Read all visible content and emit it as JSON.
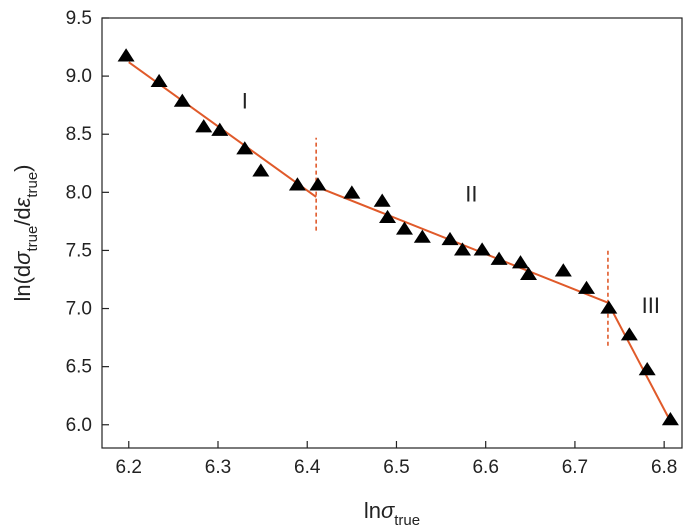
{
  "chart_data": {
    "type": "scatter",
    "xlabel": {
      "main": "ln",
      "greek": "σ",
      "sub": "true"
    },
    "ylabel": {
      "main": "ln(d",
      "greek1": "σ",
      "sub1": "true",
      "mid": "/d",
      "greek2": "ε",
      "sub2": "true",
      "tail": ")"
    },
    "xlim": [
      6.17,
      6.82
    ],
    "ylim": [
      5.8,
      9.5
    ],
    "xticks": [
      6.2,
      6.3,
      6.4,
      6.5,
      6.6,
      6.7,
      6.8
    ],
    "xtick_labels": [
      "6.2",
      "6.3",
      "6.4",
      "6.5",
      "6.6",
      "6.7",
      "6.8"
    ],
    "yticks": [
      6.0,
      6.5,
      7.0,
      7.5,
      8.0,
      8.5,
      9.0,
      9.5
    ],
    "ytick_labels": [
      "6.0",
      "6.5",
      "7.0",
      "7.5",
      "8.0",
      "8.5",
      "9.0",
      "9.5"
    ],
    "grid": false,
    "legend": "none",
    "marker": "filled-triangle",
    "series": [
      {
        "marker_color": "#000000",
        "points": [
          [
            6.197,
            9.17
          ],
          [
            6.234,
            8.95
          ],
          [
            6.26,
            8.78
          ],
          [
            6.284,
            8.56
          ],
          [
            6.302,
            8.53
          ],
          [
            6.33,
            8.37
          ],
          [
            6.348,
            8.18
          ],
          [
            6.389,
            8.06
          ],
          [
            6.412,
            8.06
          ],
          [
            6.45,
            7.99
          ],
          [
            6.484,
            7.92
          ],
          [
            6.49,
            7.78
          ],
          [
            6.509,
            7.68
          ],
          [
            6.529,
            7.61
          ],
          [
            6.56,
            7.59
          ],
          [
            6.574,
            7.5
          ],
          [
            6.596,
            7.5
          ],
          [
            6.615,
            7.42
          ],
          [
            6.639,
            7.39
          ],
          [
            6.648,
            7.29
          ],
          [
            6.687,
            7.32
          ],
          [
            6.713,
            7.17
          ],
          [
            6.738,
            7.0
          ],
          [
            6.761,
            6.77
          ],
          [
            6.781,
            6.47
          ],
          [
            6.807,
            6.04
          ]
        ]
      }
    ],
    "fit_lines": [
      {
        "label": "I",
        "from": [
          6.2,
          9.12
        ],
        "to": [
          6.41,
          7.96
        ],
        "color": "#e05a2a"
      },
      {
        "label": "II",
        "from": [
          6.41,
          8.05
        ],
        "to": [
          6.737,
          7.05
        ],
        "color": "#e05a2a"
      },
      {
        "label": "III",
        "from": [
          6.737,
          7.05
        ],
        "to": [
          6.807,
          6.03
        ],
        "color": "#e05a2a"
      }
    ],
    "boundaries": [
      {
        "x": 6.41,
        "y_range": [
          7.67,
          8.47
        ],
        "color": "#e05a2a",
        "style": "dashed"
      },
      {
        "x": 6.737,
        "y_range": [
          6.68,
          7.52
        ],
        "color": "#e05a2a",
        "style": "dashed"
      }
    ],
    "annotations": [
      {
        "text": "I",
        "x": 6.33,
        "y": 8.72
      },
      {
        "text": "II",
        "x": 6.584,
        "y": 7.92
      },
      {
        "text": "III",
        "x": 6.785,
        "y": 6.96
      }
    ]
  }
}
